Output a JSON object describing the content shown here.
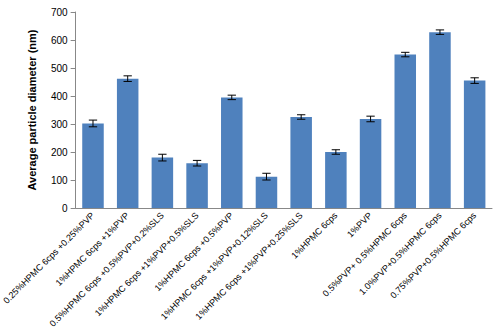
{
  "chart_data": {
    "type": "bar",
    "y_label": "Average particle diameter (nm)",
    "categories": [
      "0.25%HPMC 6cps +0.25%PVP",
      "1%HPMC 6cps +1%PVP",
      "0.5%HPMC 6cps +0.5%PVP+0.2%SLS",
      "1%HPMC 6cps +1%PVP+0.5%SLS",
      "1%HPMC 6cps +0.5%PVP",
      "1%HPMC 6cps +1%PVP+0.12%SLS",
      "1%HPMC 6cps +1%PVP+0.25%SLS",
      "1%HPMC 6cps",
      "1%PVP",
      "0.5%PVP+ 0.5%HPMC 6cps",
      "1.0%PVP+0.5%HPMC 6cps",
      "0.75%PVP+0.5%HPMC 6cps"
    ],
    "values": [
      302,
      462,
      180,
      160,
      395,
      112,
      325,
      200,
      318,
      548,
      628,
      455
    ],
    "errors": [
      12,
      10,
      12,
      10,
      8,
      12,
      8,
      8,
      10,
      8,
      8,
      10
    ],
    "color": "#4f81bd",
    "ylim": [
      0,
      700
    ],
    "yticks": [
      0,
      100,
      200,
      300,
      400,
      500,
      600,
      700
    ],
    "grid": false
  }
}
